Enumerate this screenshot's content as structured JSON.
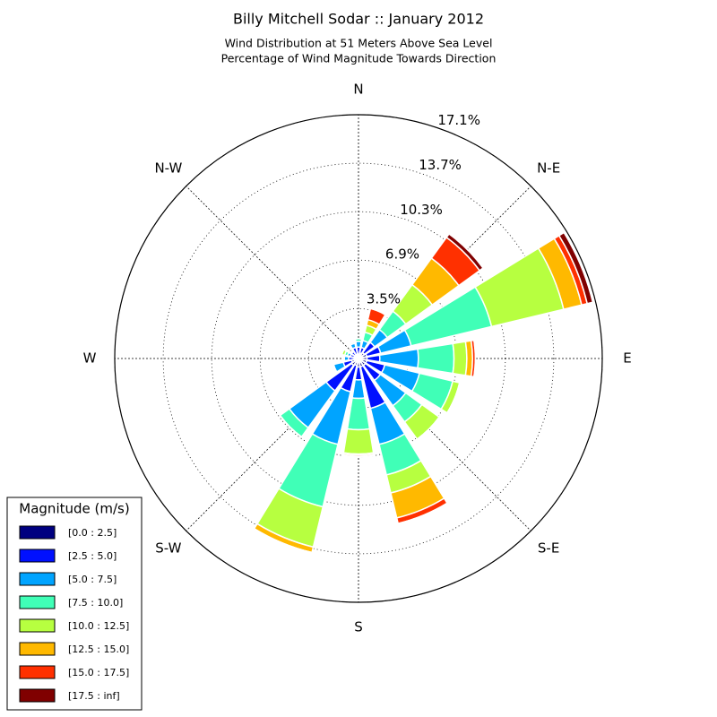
{
  "chart_data": {
    "type": "windrose",
    "title": "Billy Mitchell Sodar :: January 2012",
    "subtitle": [
      "Wind Distribution at 51 Meters Above Sea Level",
      "Percentage of Wind Magnitude Towards Direction"
    ],
    "categories": [
      "N",
      null,
      "N-E",
      null,
      "E",
      null,
      "S-E",
      null,
      "S",
      null,
      "S-W",
      null,
      "W",
      null,
      "N-W",
      null
    ],
    "rlim": [
      0,
      17.1
    ],
    "rticks": [
      {
        "value": 3.5,
        "label": "3.5%"
      },
      {
        "value": 6.9,
        "label": "6.9%"
      },
      {
        "value": 10.3,
        "label": "10.3%"
      },
      {
        "value": 13.7,
        "label": "13.7%"
      },
      {
        "value": 17.1,
        "label": "17.1%"
      }
    ],
    "grid": true,
    "legend_title": "Magnitude (m/s)",
    "legend_loc": "lower left",
    "series": [
      {
        "name": "[0.0 : 2.5]",
        "color": "#000080",
        "values": [
          0.3,
          0.4,
          0.5,
          0.6,
          0.6,
          0.6,
          0.6,
          0.6,
          0.6,
          0.5,
          0.6,
          0.5,
          0.3,
          0.3,
          0.3,
          0.3
        ]
      },
      {
        "name": "[2.5 : 5.0]",
        "color": "#0010ff",
        "values": [
          0.5,
          0.4,
          0.9,
          1.0,
          0.9,
          1.3,
          1.3,
          3.0,
          0.9,
          1.9,
          2.2,
          0.6,
          0.4,
          0.3,
          0.3,
          0.5
        ]
      },
      {
        "name": "[5.0 : 7.5]",
        "color": "#00a4ff",
        "values": [
          0.4,
          0.5,
          1.1,
          2.2,
          2.7,
          2.5,
          2.2,
          2.6,
          1.3,
          3.8,
          3.2,
          0.7,
          0.3,
          0.2,
          0.1,
          0.3
        ]
      },
      {
        "name": "[7.5 : 10.0]",
        "color": "#40ffb7",
        "values": [
          0.2,
          0.6,
          1.6,
          5.8,
          2.5,
          2.4,
          1.4,
          2.2,
          2.2,
          4.5,
          0.8,
          0,
          0,
          0.2,
          0,
          0.1
        ]
      },
      {
        "name": "[10.0 : 12.5]",
        "color": "#b7ff40",
        "values": [
          0,
          0.5,
          2.3,
          5.2,
          0.9,
          0.5,
          1.5,
          1.3,
          1.7,
          2.9,
          0,
          0,
          0,
          0.2,
          0,
          0
        ]
      },
      {
        "name": "[12.5 : 15.0]",
        "color": "#ffb900",
        "values": [
          0,
          0.4,
          2.3,
          1.3,
          0.4,
          0,
          0,
          1.8,
          0.1,
          0.4,
          0,
          0,
          0,
          0,
          0,
          0
        ]
      },
      {
        "name": "[15.0 : 17.5]",
        "color": "#ff3000",
        "values": [
          0,
          0.8,
          1.8,
          0.4,
          0.2,
          0,
          0,
          0.4,
          0.1,
          0,
          0,
          0,
          0,
          0,
          0,
          0
        ]
      },
      {
        "name": "[17.5 : inf]",
        "color": "#800000",
        "values": [
          0,
          0,
          0.3,
          0.4,
          0,
          0,
          0,
          0,
          0,
          0,
          0,
          0,
          0,
          0,
          0,
          0
        ]
      }
    ]
  }
}
